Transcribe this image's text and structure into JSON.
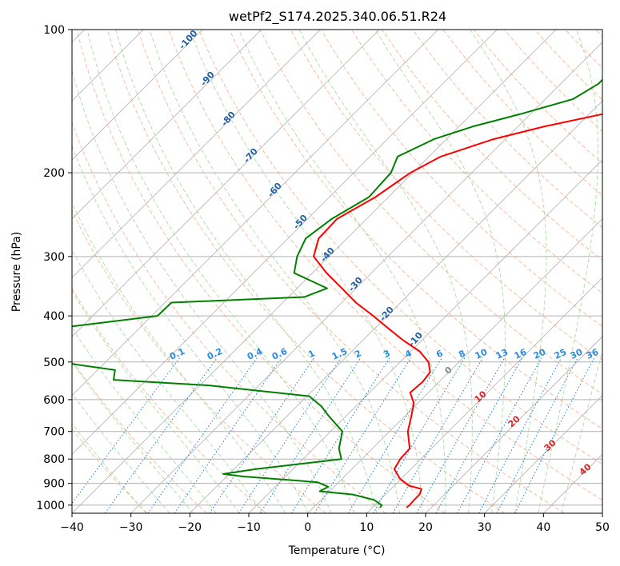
{
  "chart_data": {
    "type": "line",
    "title": "wetPf2_S174.2025.340.06.51.R24",
    "xlabel": "Temperature (°C)",
    "ylabel": "Pressure (hPa)",
    "xlim": [
      -40,
      50
    ],
    "ylim": [
      1040,
      100
    ],
    "x_ticks": [
      "−40",
      "−30",
      "−20",
      "−10",
      "0",
      "10",
      "20",
      "30",
      "40",
      "50"
    ],
    "x_tick_values": [
      -40,
      -30,
      -20,
      -10,
      0,
      10,
      20,
      30,
      40,
      50
    ],
    "y_ticks": [
      "100",
      "200",
      "300",
      "400",
      "500",
      "600",
      "700",
      "800",
      "900",
      "1000"
    ],
    "y_tick_values": [
      100,
      200,
      300,
      400,
      500,
      600,
      700,
      800,
      900,
      1000
    ],
    "grid": true,
    "skew_lines_color": "#b0b0b0",
    "dry_adiabat_color": "#f4a582",
    "moist_adiabat_color": "#a6d8a0",
    "mixing_ratio_color": "#1f7fd8",
    "series": [
      {
        "name": "Temperature",
        "color": "#ff0000",
        "points": [
          [
            -15.9,
            100
          ],
          [
            -15.2,
            110
          ],
          [
            -14.3,
            120
          ],
          [
            -13.9,
            130
          ],
          [
            -12.3,
            140
          ],
          [
            -17.3,
            150
          ],
          [
            -25.6,
            160
          ],
          [
            -32.0,
            170
          ],
          [
            -38.0,
            185
          ],
          [
            -40.4,
            200
          ],
          [
            -42.2,
            225
          ],
          [
            -45.0,
            250
          ],
          [
            -44.8,
            275
          ],
          [
            -42.6,
            300
          ],
          [
            -37.6,
            325
          ],
          [
            -32.4,
            350
          ],
          [
            -27.6,
            375
          ],
          [
            -22.4,
            400
          ],
          [
            -17.7,
            425
          ],
          [
            -13.2,
            450
          ],
          [
            -8.5,
            475
          ],
          [
            -5.2,
            500
          ],
          [
            -3.2,
            525
          ],
          [
            -2.8,
            550
          ],
          [
            -3.1,
            580
          ],
          [
            -0.7,
            610
          ],
          [
            1.1,
            650
          ],
          [
            3.1,
            700
          ],
          [
            6.3,
            760
          ],
          [
            6.5,
            800
          ],
          [
            7.2,
            840
          ],
          [
            9.8,
            880
          ],
          [
            12.5,
            910
          ],
          [
            15.2,
            925
          ],
          [
            15.8,
            950
          ],
          [
            15.8,
            975
          ],
          [
            15.9,
            1000
          ],
          [
            15.8,
            1012
          ]
        ]
      },
      {
        "name": "Dewpoint",
        "color": "#008000",
        "points": [
          [
            -23.7,
            100
          ],
          [
            -23.7,
            110
          ],
          [
            -23.6,
            120
          ],
          [
            -23.6,
            130
          ],
          [
            -25.3,
            140
          ],
          [
            -31.4,
            150
          ],
          [
            -37.7,
            160
          ],
          [
            -42.1,
            170
          ],
          [
            -45.3,
            185
          ],
          [
            -43.7,
            200
          ],
          [
            -43.3,
            225
          ],
          [
            -45.9,
            250
          ],
          [
            -47.0,
            275
          ],
          [
            -45.4,
            300
          ],
          [
            -43.1,
            325
          ],
          [
            -34.9,
            350
          ],
          [
            -37.3,
            365
          ],
          [
            -58.9,
            375
          ],
          [
            -59.0,
            400
          ],
          [
            -74.2,
            425
          ],
          [
            -81.6,
            450
          ],
          [
            -83.8,
            475
          ],
          [
            -68.0,
            500
          ],
          [
            -57.0,
            520
          ],
          [
            -55.6,
            545
          ],
          [
            -38.5,
            560
          ],
          [
            -19.6,
            590
          ],
          [
            -15.8,
            620
          ],
          [
            -12.9,
            650
          ],
          [
            -8.0,
            700
          ],
          [
            -5.7,
            760
          ],
          [
            -3.5,
            800
          ],
          [
            -16.3,
            840
          ],
          [
            -21.0,
            860
          ],
          [
            -17.4,
            870
          ],
          [
            -3.6,
            895
          ],
          [
            -1.0,
            915
          ],
          [
            -1.7,
            935
          ],
          [
            4.5,
            950
          ],
          [
            9.0,
            975
          ],
          [
            11.2,
            1000
          ],
          [
            11.3,
            1012
          ]
        ]
      }
    ],
    "mixing_ratio_labels": [
      "0.1",
      "0.2",
      "0.4",
      "0.6",
      "1",
      "1.5",
      "2",
      "3",
      "4",
      "6",
      "8",
      "10",
      "13",
      "16",
      "20",
      "25",
      "30",
      "36"
    ],
    "mixing_ratio_values": [
      0.1,
      0.2,
      0.4,
      0.6,
      1,
      1.5,
      2,
      3,
      4,
      6,
      8,
      10,
      13,
      16,
      20,
      25,
      30,
      36
    ],
    "moist_adiabat_labels": [
      "-100",
      "-90",
      "-80",
      "-70",
      "-60",
      "-50",
      "-40",
      "-30",
      "-20",
      "-10"
    ],
    "moist_adiabat_values": [
      -100,
      -90,
      -80,
      -70,
      -60,
      -50,
      -40,
      -30,
      -20,
      -10
    ],
    "dry_adiabat_labels": [
      "0",
      "10",
      "20",
      "30",
      "40"
    ],
    "dry_adiabat_values": [
      0,
      10,
      20,
      30,
      40
    ]
  }
}
